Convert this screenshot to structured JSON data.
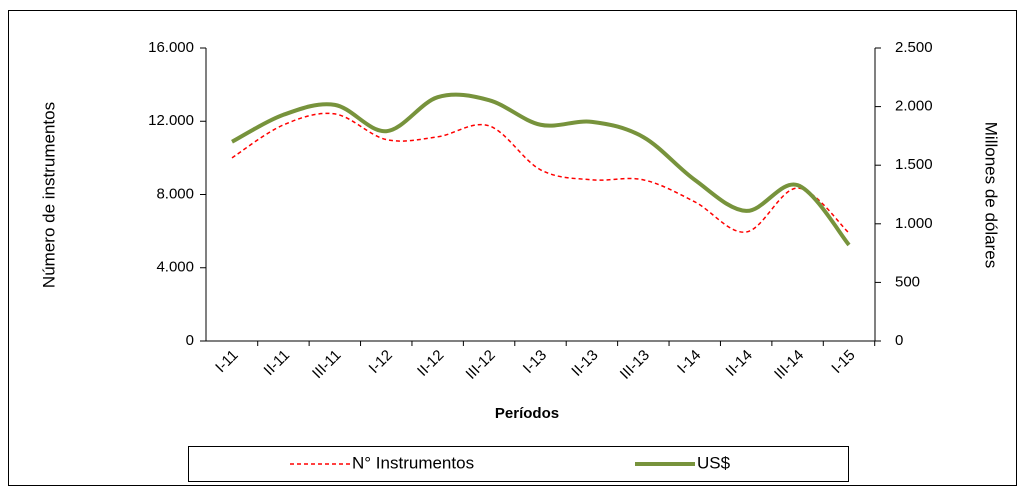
{
  "chart_data": {
    "type": "line",
    "x_label": "Períodos",
    "y_label": "Número de instrumentos",
    "y2_label": "Millones de dólares",
    "categories": [
      "I-11",
      "II-11",
      "III-11",
      "I-12",
      "II-12",
      "III-12",
      "I-13",
      "II-13",
      "III-13",
      "I-14",
      "II-14",
      "III-14",
      "I-15"
    ],
    "series": [
      {
        "name": "N° Instrumentos",
        "color": "#ff0000",
        "dashed": true,
        "values": [
          10000,
          11800,
          12400,
          11000,
          11150,
          11750,
          9350,
          8800,
          8800,
          7600,
          5950,
          8350,
          5900
        ]
      },
      {
        "name": "US$",
        "color": "#77933c",
        "axis": "y2",
        "values": [
          1700,
          1930,
          2015,
          1790,
          2080,
          2055,
          1845,
          1870,
          1740,
          1375,
          1110,
          1330,
          820
        ]
      }
    ],
    "ylim": [
      0,
      16000
    ],
    "yticks": [
      0,
      {
        "value": 4000,
        "label": "4.000"
      },
      {
        "value": 8000,
        "label": "8.000"
      },
      {
        "value": 12000,
        "label": "12.000"
      },
      {
        "value": 16000,
        "label": "16.000"
      }
    ],
    "y2lim": [
      0,
      2500
    ],
    "y2ticks": [
      0,
      500,
      {
        "value": 1000,
        "label": "1.000"
      },
      {
        "value": 1500,
        "label": "1.500"
      },
      {
        "value": 2000,
        "label": "2.000"
      },
      {
        "value": 2500,
        "label": "2.500"
      }
    ],
    "grid": false,
    "legend": "bottom"
  }
}
